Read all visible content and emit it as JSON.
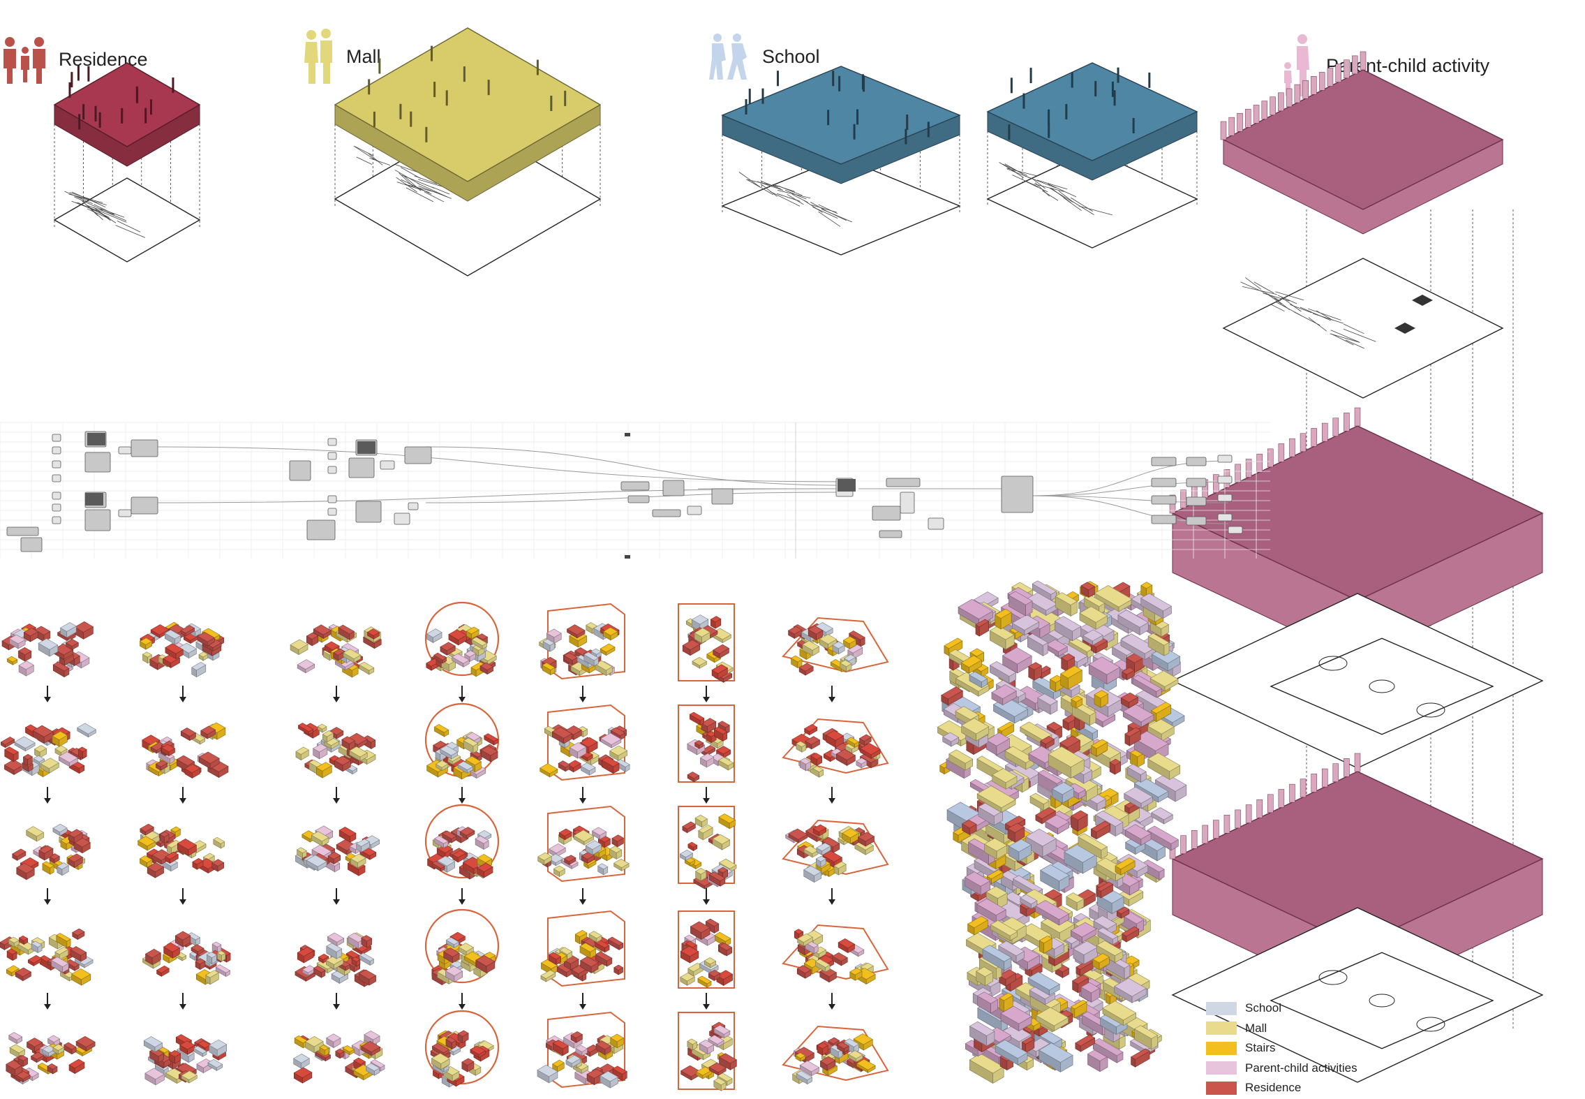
{
  "headers": {
    "residence": "Residence",
    "mall": "Mall",
    "school": "School",
    "parent_child": "Parent-child activity"
  },
  "legend": [
    {
      "label": "School",
      "color": "#cfd6e4"
    },
    {
      "label": "Mall",
      "color": "#e8dc8c"
    },
    {
      "label": "Stairs",
      "color": "#f2bf1e"
    },
    {
      "label": "Parent-child activities",
      "color": "#e8c3dc"
    },
    {
      "label": "Residence",
      "color": "#c9554d"
    }
  ],
  "colors": {
    "residence": "#a8384f",
    "mall": "#d8cc6a",
    "school": "#4f86a4",
    "parent_child": "#a8607c",
    "stair": "#f2bf1e",
    "arrow": "#222222",
    "container": "#d9643a"
  },
  "icons": {
    "residence": "family-icon",
    "mall": "couple-icon",
    "school": "students-icon",
    "parent_child": "parent-child-icon"
  }
}
